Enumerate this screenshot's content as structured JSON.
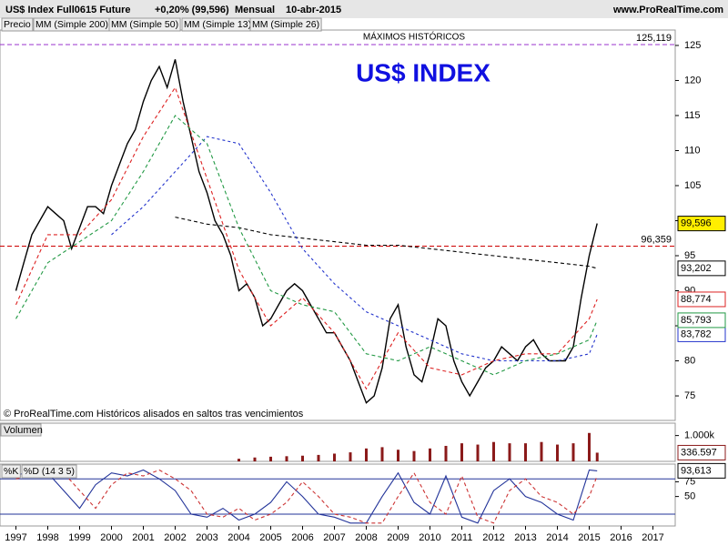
{
  "header": {
    "title": "US$ Index Full0615 Future",
    "change": "+0,20% (99,596)",
    "period": "Mensual",
    "date": "10-abr-2015",
    "site": "www.ProRealTime.com"
  },
  "chart_data": [
    {
      "type": "line",
      "title": "US$ INDEX",
      "footnote": "© ProRealTime.com Históricos alisados en saltos tras vencimientos",
      "xlim": [
        1996.5,
        2017.7
      ],
      "ylim": [
        71.5,
        127.2
      ],
      "yticks": [
        75,
        80,
        85,
        90,
        95,
        100,
        105,
        110,
        115,
        120,
        125
      ],
      "hlines": [
        {
          "value": 125.119,
          "label": "125,119",
          "text": "MÁXIMOS HISTÓRICOS",
          "color": "#9933cc"
        },
        {
          "value": 96.359,
          "label": "96,359",
          "color": "#cc0000"
        }
      ],
      "series": [
        {
          "name": "Precio",
          "color": "#000000",
          "last_label": "99,596",
          "x": [
            1997,
            1997.25,
            1997.5,
            1997.75,
            1998,
            1998.25,
            1998.5,
            1998.75,
            1999,
            1999.25,
            1999.5,
            1999.75,
            2000,
            2000.25,
            2000.5,
            2000.75,
            2001,
            2001.25,
            2001.5,
            2001.75,
            2002,
            2002.25,
            2002.5,
            2002.75,
            2003,
            2003.25,
            2003.5,
            2003.75,
            2004,
            2004.25,
            2004.5,
            2004.75,
            2005,
            2005.25,
            2005.5,
            2005.75,
            2006,
            2006.25,
            2006.5,
            2006.75,
            2007,
            2007.25,
            2007.5,
            2007.75,
            2008,
            2008.25,
            2008.5,
            2008.75,
            2009,
            2009.25,
            2009.5,
            2009.75,
            2010,
            2010.25,
            2010.5,
            2010.75,
            2011,
            2011.25,
            2011.5,
            2011.75,
            2012,
            2012.25,
            2012.5,
            2012.75,
            2013,
            2013.25,
            2013.5,
            2013.75,
            2014,
            2014.25,
            2014.5,
            2014.75,
            2015,
            2015.25
          ],
          "values": [
            90,
            94,
            98,
            100,
            102,
            101,
            100,
            96,
            99,
            102,
            102,
            101,
            105,
            108,
            111,
            113,
            117,
            120,
            122,
            119,
            123,
            117,
            112,
            107,
            104,
            100,
            98,
            95,
            90,
            91,
            89,
            85,
            86,
            88,
            90,
            91,
            90,
            88,
            86,
            84,
            84,
            82,
            80,
            77,
            74,
            75,
            79,
            86,
            88,
            82,
            78,
            77,
            81,
            86,
            85,
            80,
            77,
            75,
            77,
            79,
            80,
            82,
            81,
            80,
            82,
            83,
            81,
            80,
            80,
            80,
            82,
            89,
            95,
            99.596
          ]
        },
        {
          "name": "MM (Simple 200)",
          "color": "#000000",
          "last_label": "93,202",
          "x": [
            1997,
            1998,
            1999,
            2000,
            2001,
            2002,
            2003,
            2004,
            2005,
            2006,
            2007,
            2008,
            2009,
            2010,
            2011,
            2012,
            2013,
            2014,
            2015,
            2015.25
          ],
          "values": [
            null,
            null,
            null,
            null,
            null,
            100.5,
            99.5,
            99,
            98,
            97.5,
            97,
            96.5,
            96.5,
            96,
            95.5,
            95,
            94.5,
            94,
            93.5,
            93.202
          ]
        },
        {
          "name": "MM (Simple 50)",
          "color": "#2233cc",
          "last_label": "83,782",
          "x": [
            1997,
            1998,
            1999,
            2000,
            2001,
            2002,
            2003,
            2004,
            2005,
            2006,
            2007,
            2008,
            2009,
            2010,
            2011,
            2012,
            2013,
            2014,
            2015,
            2015.25
          ],
          "values": [
            null,
            null,
            null,
            98,
            102,
            107,
            112,
            111,
            104,
            96,
            91,
            87,
            85,
            83,
            81,
            80,
            80,
            80,
            81,
            83.782
          ]
        },
        {
          "name": "MM (Simple 13)",
          "color": "#dd2222",
          "last_label": "88,774",
          "x": [
            1997,
            1998,
            1999,
            2000,
            2001,
            2002,
            2003,
            2004,
            2005,
            2006,
            2007,
            2008,
            2009,
            2010,
            2011,
            2012,
            2013,
            2014,
            2015,
            2015.25
          ],
          "values": [
            88,
            98,
            98,
            103,
            112,
            119,
            106,
            93,
            85,
            89,
            84,
            76,
            84,
            79,
            78,
            80,
            81,
            81,
            86,
            88.774
          ]
        },
        {
          "name": "MM (Simple 26)",
          "color": "#229944",
          "last_label": "85,793",
          "x": [
            1997,
            1998,
            1999,
            2000,
            2001,
            2002,
            2003,
            2004,
            2005,
            2006,
            2007,
            2008,
            2009,
            2010,
            2011,
            2012,
            2013,
            2014,
            2015,
            2015.25
          ],
          "values": [
            86,
            94,
            97,
            100,
            107,
            115,
            111,
            99,
            90,
            88,
            87,
            81,
            80,
            82,
            80,
            78,
            80,
            81,
            83,
            85.793
          ]
        }
      ]
    },
    {
      "type": "bar",
      "title": "Volumen",
      "xlim": [
        1996.5,
        2017.7
      ],
      "ylim": [
        0,
        1480000
      ],
      "yticks": [
        {
          "value": 1000000,
          "label": "1.000k"
        }
      ],
      "series": [
        {
          "name": "Volumen",
          "color": "#8b1a1a",
          "last_label": "336.597",
          "x": [
            2004,
            2004.5,
            2005,
            2005.5,
            2006,
            2006.5,
            2007,
            2007.5,
            2008,
            2008.5,
            2009,
            2009.5,
            2010,
            2010.5,
            2011,
            2011.5,
            2012,
            2012.5,
            2013,
            2013.5,
            2014,
            2014.5,
            2015,
            2015.25
          ],
          "values": [
            100000,
            150000,
            180000,
            200000,
            220000,
            250000,
            300000,
            350000,
            500000,
            550000,
            450000,
            400000,
            500000,
            600000,
            700000,
            650000,
            750000,
            700000,
            700000,
            750000,
            650000,
            700000,
            1100000,
            336597
          ]
        }
      ]
    },
    {
      "type": "line",
      "xlim": [
        1996.5,
        2017.7
      ],
      "ylim": [
        0,
        105
      ],
      "yticks": [
        75,
        50
      ],
      "levels": [
        80,
        20
      ],
      "xticks": [
        1997,
        1998,
        1999,
        2000,
        2001,
        2002,
        2003,
        2004,
        2005,
        2006,
        2007,
        2008,
        2009,
        2010,
        2011,
        2012,
        2013,
        2014,
        2015,
        2016,
        2017
      ],
      "series": [
        {
          "name": "%K",
          "color": "#000000",
          "last_label": "93,613",
          "x": [
            1997,
            1997.5,
            1998,
            1998.5,
            1999,
            1999.5,
            2000,
            2000.5,
            2001,
            2001.5,
            2002,
            2002.5,
            2003,
            2003.5,
            2004,
            2004.5,
            2005,
            2005.5,
            2006,
            2006.5,
            2007,
            2007.5,
            2008,
            2008.5,
            2009,
            2009.5,
            2010,
            2010.5,
            2011,
            2011.5,
            2012,
            2012.5,
            2013,
            2013.5,
            2014,
            2014.5,
            2015,
            2015.25
          ],
          "values": [
            85,
            95,
            90,
            60,
            30,
            70,
            90,
            85,
            95,
            80,
            60,
            20,
            15,
            30,
            10,
            20,
            40,
            75,
            50,
            20,
            15,
            5,
            5,
            50,
            90,
            40,
            20,
            85,
            15,
            5,
            60,
            80,
            50,
            40,
            20,
            10,
            95,
            93.613
          ]
        },
        {
          "name": "%D (14 3 5)",
          "color": "#cc3333",
          "x": [
            1997,
            1997.5,
            1998,
            1998.5,
            1999,
            1999.5,
            2000,
            2000.5,
            2001,
            2001.5,
            2002,
            2002.5,
            2003,
            2003.5,
            2004,
            2004.5,
            2005,
            2005.5,
            2006,
            2006.5,
            2007,
            2007.5,
            2008,
            2008.5,
            2009,
            2009.5,
            2010,
            2010.5,
            2011,
            2011.5,
            2012,
            2012.5,
            2013,
            2013.5,
            2014,
            2014.5,
            2015,
            2015.25
          ],
          "values": [
            80,
            85,
            95,
            90,
            60,
            30,
            70,
            90,
            85,
            95,
            80,
            60,
            20,
            15,
            30,
            10,
            20,
            40,
            75,
            50,
            20,
            15,
            5,
            5,
            50,
            90,
            40,
            20,
            85,
            15,
            5,
            60,
            80,
            50,
            40,
            20,
            50,
            85
          ]
        }
      ]
    }
  ]
}
